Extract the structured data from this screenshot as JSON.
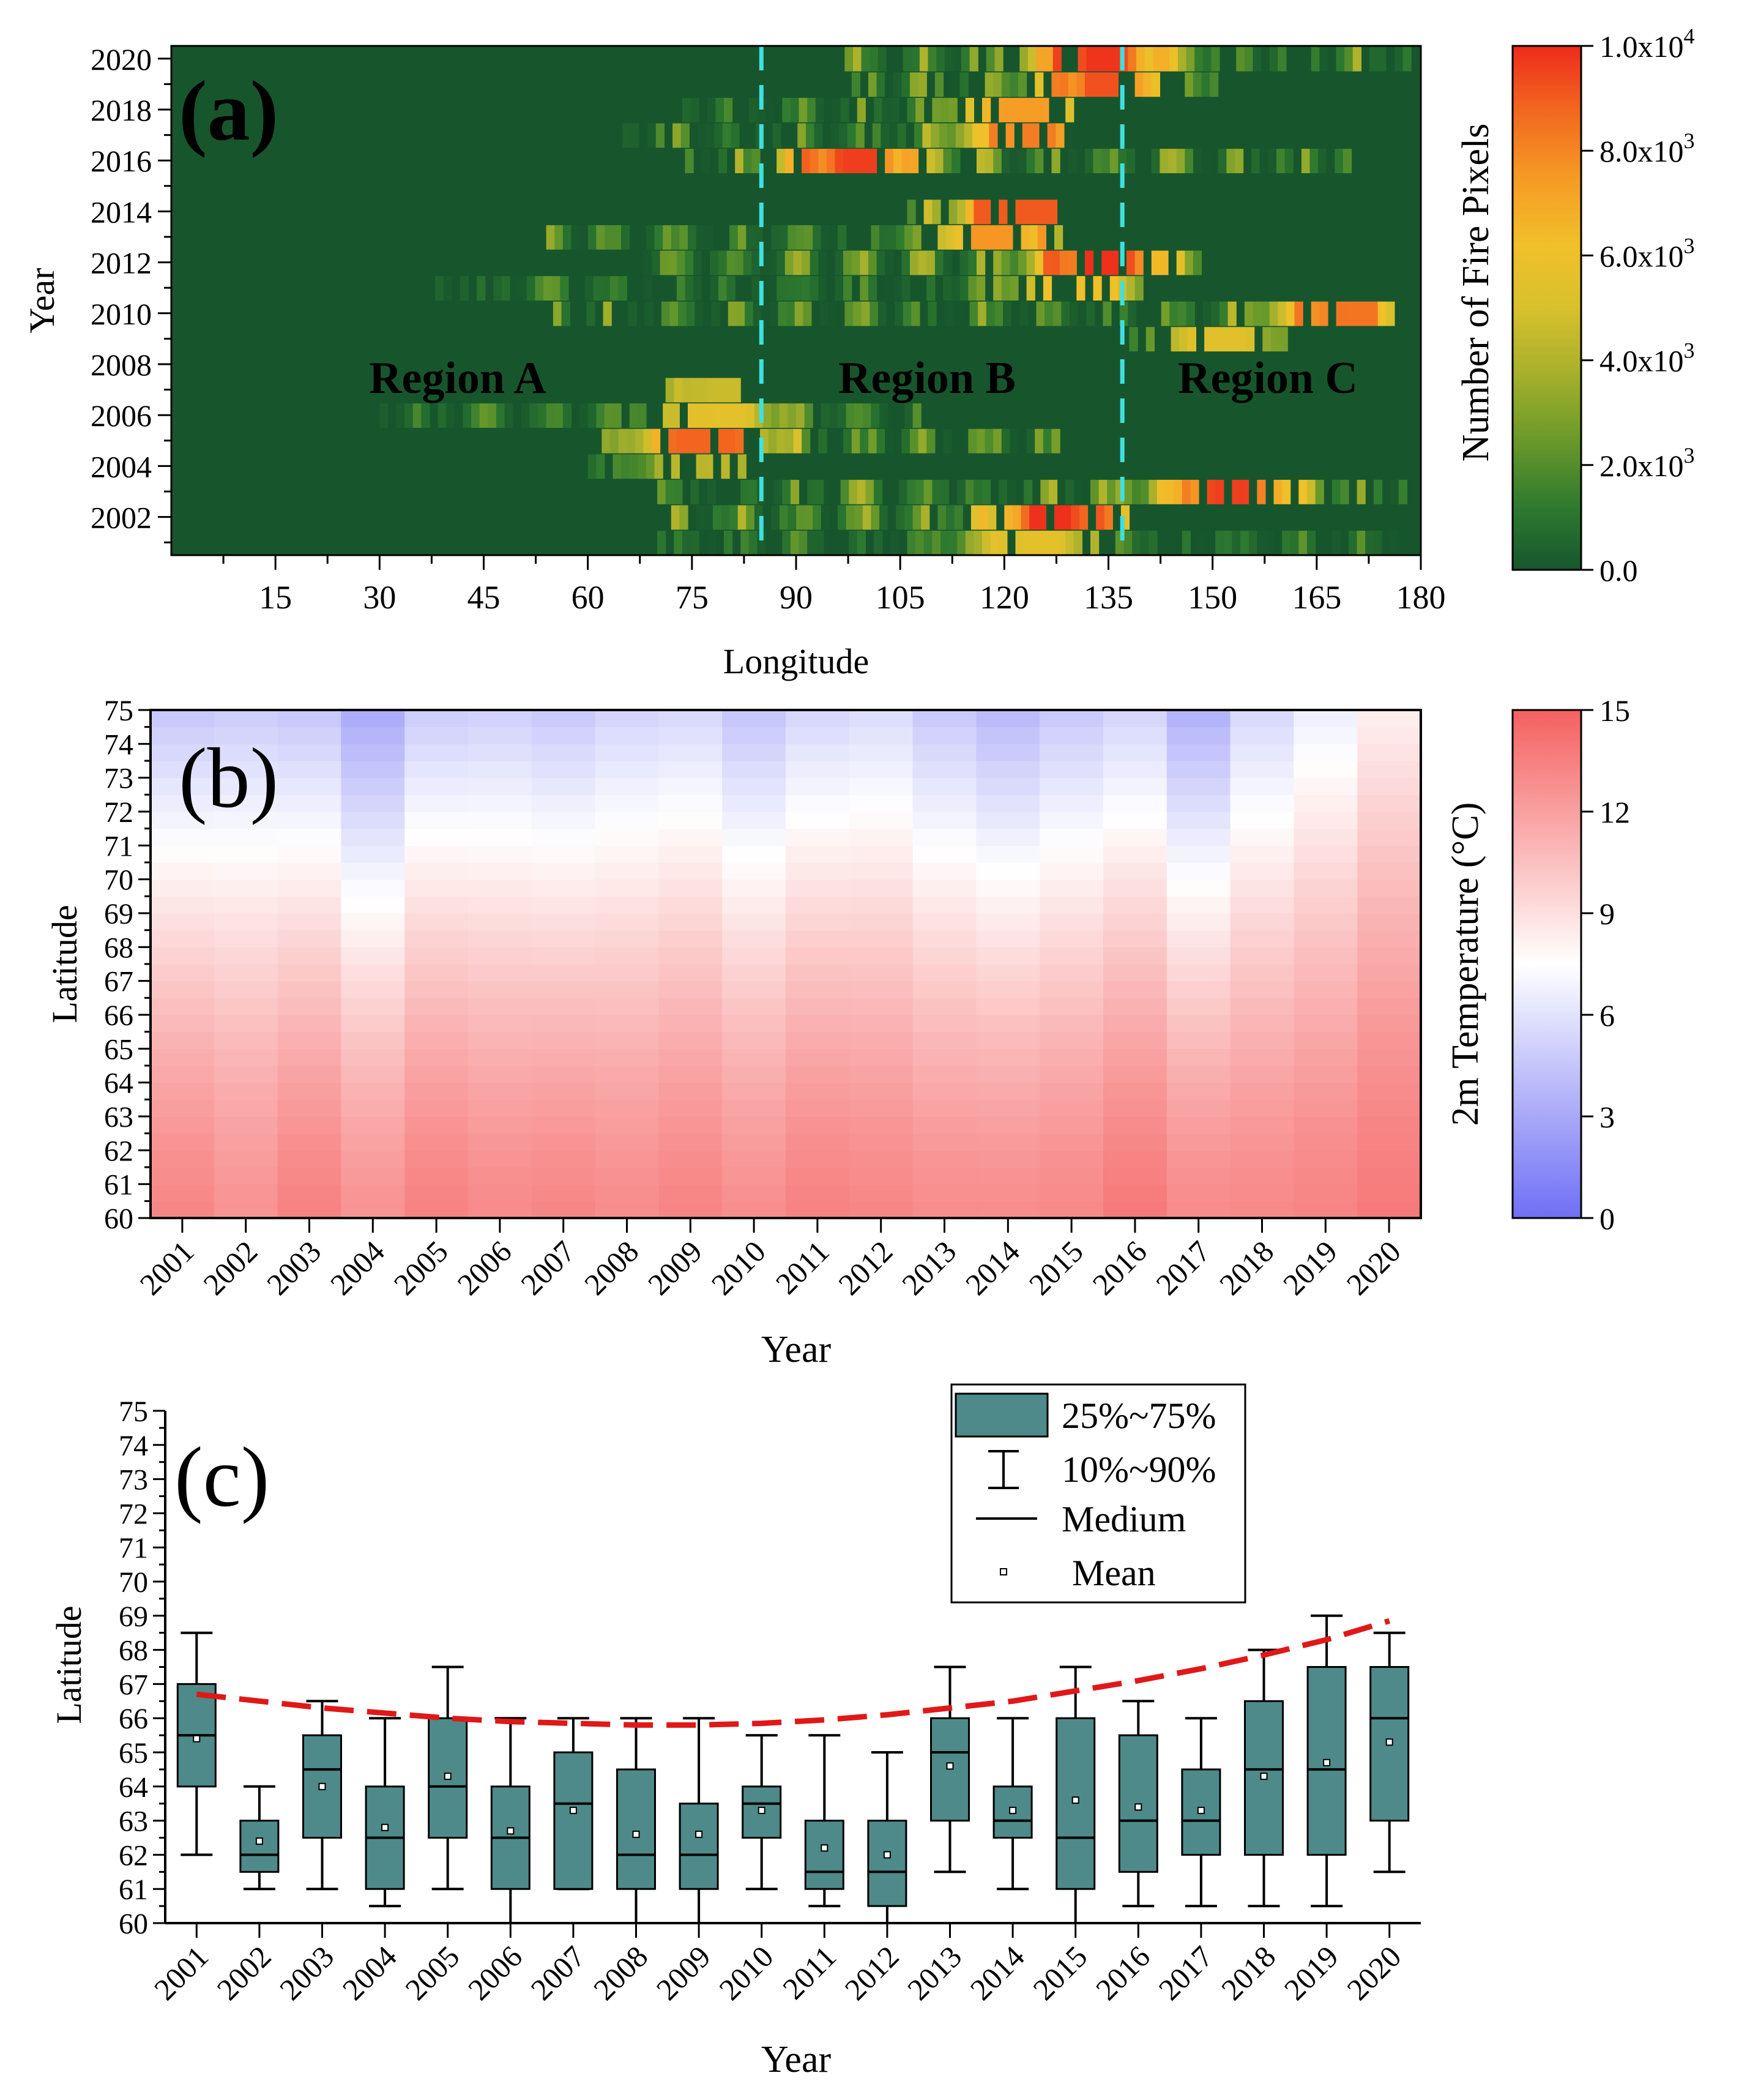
{
  "chart_data": [
    {
      "panel": "(a)",
      "type": "heatmap",
      "xlabel": "Longitude",
      "ylabel": "Year",
      "x_ticks": [
        15,
        30,
        45,
        60,
        75,
        90,
        105,
        120,
        135,
        150,
        165,
        180
      ],
      "y_ticks": [
        "2002",
        "2004",
        "2006",
        "2008",
        "2010",
        "2012",
        "2014",
        "2016",
        "2018",
        "2020"
      ],
      "xlim": [
        0,
        180
      ],
      "ylim": [
        2001,
        2020
      ],
      "colorbar_label": "Number of Fire Pixels",
      "colorbar_ticks": [
        "0.0",
        "2.0x10",
        "4.0x10",
        "6.0x10",
        "8.0x10",
        "1.0x10"
      ],
      "colorbar_exponents": [
        "",
        "3",
        "3",
        "3",
        "3",
        "4"
      ],
      "colorbar_range": [
        0,
        10000
      ],
      "colors": {
        "background": "#17562d",
        "scale": [
          "#17562d",
          "#2e7a2f",
          "#6b9a2a",
          "#a9b12c",
          "#d8c02c",
          "#f1c02a",
          "#f59a25",
          "#f2661f",
          "#ee2b1c"
        ]
      },
      "region_boundaries": [
        85,
        137
      ],
      "region_labels": [
        "Region A",
        "Region B",
        "Region C"
      ],
      "hotspots": [
        {
          "year": 2020,
          "lon_start": 97,
          "lon_end": 178,
          "peak_lon": 133,
          "peak": 9800
        },
        {
          "year": 2019,
          "lon_start": 98,
          "lon_end": 150,
          "peak_lon": 134,
          "peak": 9200
        },
        {
          "year": 2018,
          "lon_start": 70,
          "lon_end": 130,
          "peak_lon": 122,
          "peak": 7400
        },
        {
          "year": 2017,
          "lon_start": 65,
          "lon_end": 128,
          "peak_lon": 123,
          "peak": 8200
        },
        {
          "year": 2016,
          "lon_start": 74,
          "lon_end": 169,
          "peak_lon": 98,
          "peak": 9600
        },
        {
          "year": 2014,
          "lon_start": 106,
          "lon_end": 127,
          "peak_lon": 122,
          "peak": 9000
        },
        {
          "year": 2013,
          "lon_start": 54,
          "lon_end": 128,
          "peak_lon": 118,
          "peak": 7600
        },
        {
          "year": 2012,
          "lon_start": 68,
          "lon_end": 148,
          "peak_lon": 134,
          "peak": 9900
        },
        {
          "year": 2011,
          "lon_start": 38,
          "lon_end": 140,
          "peak_lon": 130,
          "peak": 6200
        },
        {
          "year": 2010,
          "lon_start": 55,
          "lon_end": 175,
          "peak_lon": 168,
          "peak": 8400
        },
        {
          "year": 2009,
          "lon_start": 138,
          "lon_end": 160,
          "peak_lon": 150,
          "peak": 5400
        },
        {
          "year": 2007,
          "lon_start": 70,
          "lon_end": 82,
          "peak_lon": 78,
          "peak": 4600
        },
        {
          "year": 2006,
          "lon_start": 30,
          "lon_end": 108,
          "peak_lon": 78,
          "peak": 5600
        },
        {
          "year": 2005,
          "lon_start": 62,
          "lon_end": 128,
          "peak_lon": 76,
          "peak": 8800
        },
        {
          "year": 2004,
          "lon_start": 60,
          "lon_end": 82,
          "peak_lon": 76,
          "peak": 4200
        },
        {
          "year": 2003,
          "lon_start": 70,
          "lon_end": 177,
          "peak_lon": 152,
          "peak": 9600
        },
        {
          "year": 2002,
          "lon_start": 72,
          "lon_end": 137,
          "peak_lon": 127,
          "peak": 9900
        },
        {
          "year": 2001,
          "lon_start": 70,
          "lon_end": 178,
          "peak_lon": 124,
          "peak": 5600
        }
      ]
    },
    {
      "panel": "(b)",
      "type": "heatmap",
      "xlabel": "Year",
      "ylabel": "Latitude",
      "x_categories": [
        "2001",
        "2002",
        "2003",
        "2004",
        "2005",
        "2006",
        "2007",
        "2008",
        "2009",
        "2010",
        "2011",
        "2012",
        "2013",
        "2014",
        "2015",
        "2016",
        "2017",
        "2018",
        "2019",
        "2020"
      ],
      "y_ticks": [
        60,
        61,
        62,
        63,
        64,
        65,
        66,
        67,
        68,
        69,
        70,
        71,
        72,
        73,
        74,
        75
      ],
      "ylim": [
        60,
        75
      ],
      "colorbar_label": "2m Temperature (°C)",
      "colorbar_ticks": [
        "0",
        "3",
        "6",
        "9",
        "12",
        "15"
      ],
      "colorbar_range": [
        0,
        15
      ],
      "colors": {
        "cold": "#6f6ff5",
        "neutral": "#ffffff",
        "warm": "#f56060"
      },
      "temp_at_60": [
        13.2,
        12.6,
        13.4,
        12.6,
        13.4,
        13.0,
        13.2,
        12.9,
        13.3,
        12.8,
        13.4,
        13.2,
        12.9,
        12.9,
        13.1,
        13.8,
        13.0,
        13.1,
        13.3,
        13.8
      ],
      "temp_at_75": [
        4.5,
        4.8,
        4.5,
        3.0,
        4.8,
        5.0,
        4.6,
        5.2,
        5.4,
        4.4,
        5.3,
        5.6,
        4.6,
        3.8,
        4.6,
        5.2,
        3.4,
        5.4,
        6.6,
        8.2
      ]
    },
    {
      "panel": "(c)",
      "type": "box",
      "xlabel": "Year",
      "ylabel": "Latitude",
      "categories": [
        "2001",
        "2002",
        "2003",
        "2004",
        "2005",
        "2006",
        "2007",
        "2008",
        "2009",
        "2010",
        "2011",
        "2012",
        "2013",
        "2014",
        "2015",
        "2016",
        "2017",
        "2018",
        "2019",
        "2020"
      ],
      "y_ticks": [
        60,
        61,
        62,
        63,
        64,
        65,
        66,
        67,
        68,
        69,
        70,
        71,
        72,
        73,
        74,
        75
      ],
      "ylim": [
        60,
        75
      ],
      "p10": [
        62,
        61,
        61,
        60.5,
        61,
        60,
        61,
        60,
        60,
        61,
        60.5,
        60,
        61.5,
        61,
        60,
        60.5,
        60.5,
        60.5,
        60.5,
        61.5
      ],
      "p25": [
        64,
        61.5,
        62.5,
        61,
        62.5,
        61,
        61,
        61,
        61,
        62.5,
        61,
        60.5,
        63,
        62.5,
        61,
        61.5,
        62,
        62,
        62,
        63
      ],
      "median": [
        65.5,
        62,
        64.5,
        62.5,
        64,
        62.5,
        63.5,
        62,
        62,
        63.5,
        61.5,
        61.5,
        65,
        63,
        62.5,
        63,
        63,
        64.5,
        64.5,
        66
      ],
      "p75": [
        67,
        63,
        65.5,
        64,
        66,
        64,
        65,
        64.5,
        63.5,
        64,
        63,
        63,
        66,
        64,
        66,
        65.5,
        64.5,
        66.5,
        67.5,
        67.5
      ],
      "p90": [
        68.5,
        64,
        66.5,
        66,
        67.5,
        66,
        66,
        66,
        66,
        65.5,
        65.5,
        65,
        67.5,
        66,
        67.5,
        66.5,
        66,
        68,
        69,
        68.5
      ],
      "mean": [
        65.4,
        62.4,
        64.0,
        62.8,
        64.3,
        62.7,
        63.3,
        62.6,
        62.6,
        63.3,
        62.2,
        62.0,
        64.6,
        63.3,
        63.6,
        63.4,
        63.3,
        64.3,
        64.7,
        65.3
      ],
      "trend": [
        66.7,
        66.5,
        66.3,
        66.15,
        66.0,
        65.9,
        65.85,
        65.8,
        65.8,
        65.85,
        65.95,
        66.1,
        66.3,
        66.5,
        66.8,
        67.1,
        67.45,
        67.85,
        68.3,
        68.85
      ],
      "legend": [
        "25%~75%",
        "10%~90%",
        "Medium",
        "Mean"
      ],
      "legend_position": "top-right",
      "colors": {
        "box_fill": "#4e8a8a",
        "trend": "#e01818"
      }
    }
  ]
}
